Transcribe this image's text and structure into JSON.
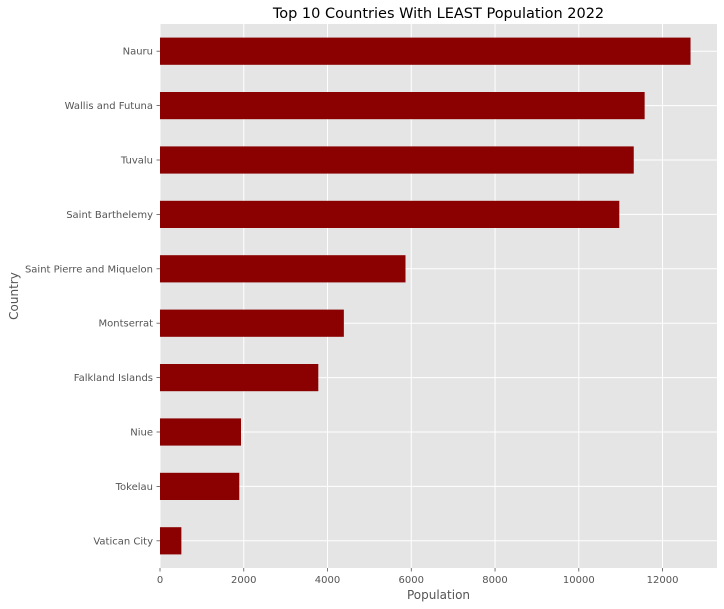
{
  "chart_data": {
    "type": "bar",
    "orientation": "horizontal",
    "title": "Top 10 Countries With LEAST Population 2022",
    "xlabel": "Population",
    "ylabel": "Country",
    "categories": [
      "Nauru",
      "Wallis and Futuna",
      "Tuvalu",
      "Saint Barthelemy",
      "Saint Pierre and Miquelon",
      "Montserrat",
      "Falkland Islands",
      "Niue",
      "Tokelau",
      "Vatican City"
    ],
    "values": [
      12668,
      11572,
      11312,
      10967,
      5862,
      4390,
      3780,
      1934,
      1893,
      510
    ],
    "xlim": [
      0,
      13300
    ],
    "xticks": [
      0,
      2000,
      4000,
      6000,
      8000,
      10000,
      12000
    ],
    "grid": true,
    "style": "ggplot",
    "colors": {
      "bar": "#8b0000",
      "plot_background": "#e5e5e5",
      "grid": "#ffffff"
    }
  }
}
